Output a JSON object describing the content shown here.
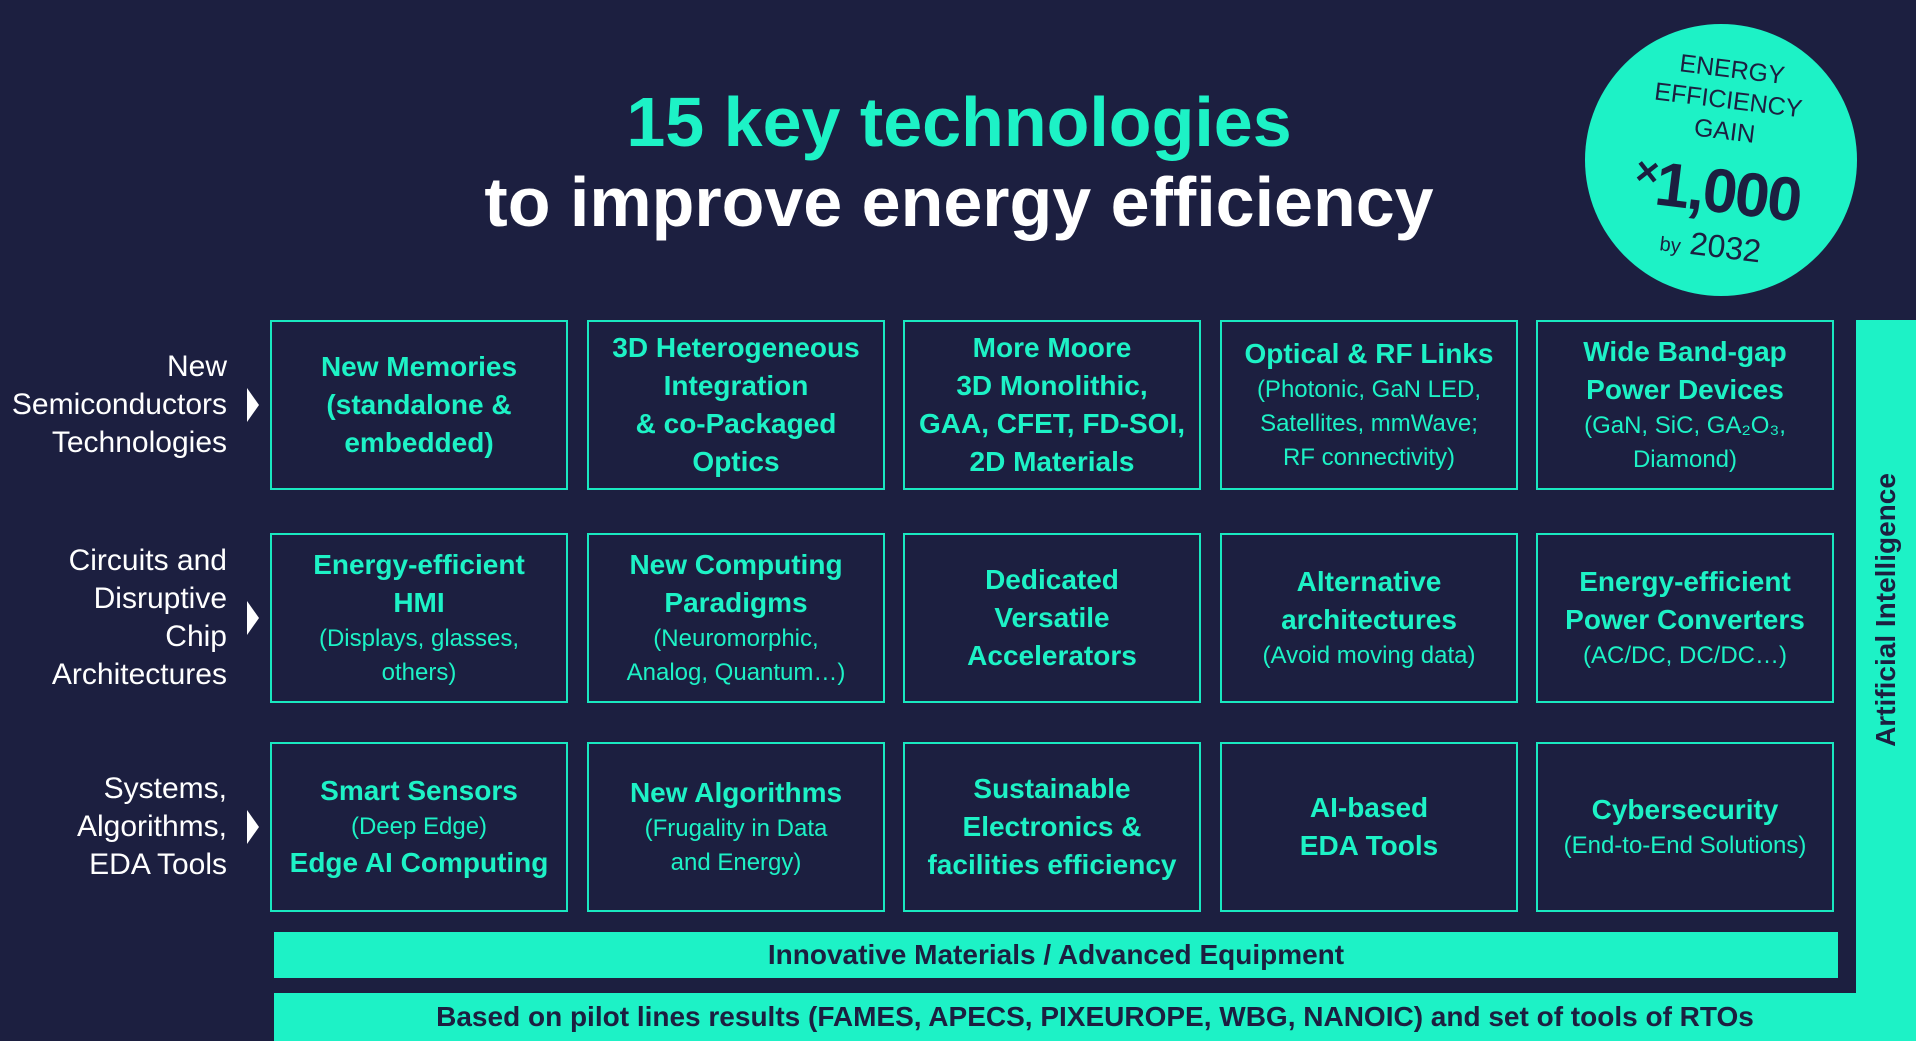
{
  "header": {
    "title_line1": "15 key technologies",
    "title_line2": "to improve energy efficiency"
  },
  "badge": {
    "lines": [
      "ENERGY",
      "EFFICIENCY",
      "GAIN"
    ],
    "multiplier": "×",
    "value": "1,000",
    "prefix": "by",
    "year": "2032"
  },
  "rows": [
    {
      "label": [
        "New",
        "Semiconductors",
        "Technologies"
      ],
      "cells": [
        {
          "lines": [
            {
              "text": "New Memories",
              "style": "bold"
            },
            {
              "text": "(standalone &",
              "style": "bold"
            },
            {
              "text": "embedded)",
              "style": "bold"
            }
          ]
        },
        {
          "lines": [
            {
              "text": "3D Heterogeneous",
              "style": "bold"
            },
            {
              "text": "Integration",
              "style": "bold"
            },
            {
              "text": "& co-Packaged",
              "style": "bold"
            },
            {
              "text": "Optics",
              "style": "bold"
            }
          ]
        },
        {
          "lines": [
            {
              "text": "More Moore",
              "style": "bold"
            },
            {
              "text": "3D Monolithic,",
              "style": "bold"
            },
            {
              "text": "GAA, CFET, FD-SOI,",
              "style": "bold"
            },
            {
              "text": "2D Materials",
              "style": "bold"
            }
          ]
        },
        {
          "lines": [
            {
              "text": "Optical & RF Links",
              "style": "bold"
            },
            {
              "text": "(Photonic, GaN LED,",
              "style": "regular"
            },
            {
              "text": "Satellites, mmWave;",
              "style": "regular"
            },
            {
              "text": "RF connectivity)",
              "style": "regular"
            }
          ]
        },
        {
          "lines": [
            {
              "text": "Wide Band-gap",
              "style": "bold"
            },
            {
              "text": "Power Devices",
              "style": "bold"
            },
            {
              "text": "(GaN, SiC, GA₂O₃,",
              "style": "regular"
            },
            {
              "text": "Diamond)",
              "style": "regular"
            }
          ]
        }
      ]
    },
    {
      "label": [
        "Circuits and",
        "Disruptive",
        "Chip",
        "Architectures"
      ],
      "cells": [
        {
          "lines": [
            {
              "text": "Energy-efficient",
              "style": "bold"
            },
            {
              "text": "HMI",
              "style": "bold"
            },
            {
              "text": "(Displays, glasses,",
              "style": "regular"
            },
            {
              "text": "others)",
              "style": "regular"
            }
          ]
        },
        {
          "lines": [
            {
              "text": "New Computing",
              "style": "bold"
            },
            {
              "text": "Paradigms",
              "style": "bold"
            },
            {
              "text": "(Neuromorphic,",
              "style": "regular"
            },
            {
              "text": "Analog, Quantum…)",
              "style": "regular"
            }
          ]
        },
        {
          "lines": [
            {
              "text": "Dedicated",
              "style": "bold"
            },
            {
              "text": "Versatile",
              "style": "bold"
            },
            {
              "text": "Accelerators",
              "style": "bold"
            }
          ]
        },
        {
          "lines": [
            {
              "text": "Alternative",
              "style": "bold"
            },
            {
              "text": "architectures",
              "style": "bold"
            },
            {
              "text": "(Avoid moving data)",
              "style": "regular"
            }
          ]
        },
        {
          "lines": [
            {
              "text": "Energy-efficient",
              "style": "bold"
            },
            {
              "text": "Power Converters",
              "style": "bold"
            },
            {
              "text": "(AC/DC, DC/DC…)",
              "style": "regular"
            }
          ]
        }
      ]
    },
    {
      "label": [
        "Systems,",
        "Algorithms,",
        "EDA Tools"
      ],
      "cells": [
        {
          "lines": [
            {
              "text": "Smart Sensors",
              "style": "bold"
            },
            {
              "text": "(Deep Edge)",
              "style": "regular"
            },
            {
              "text": "Edge AI Computing",
              "style": "bold"
            }
          ]
        },
        {
          "lines": [
            {
              "text": "New Algorithms",
              "style": "bold"
            },
            {
              "text": "(Frugality in Data",
              "style": "regular"
            },
            {
              "text": "and Energy)",
              "style": "regular"
            }
          ]
        },
        {
          "lines": [
            {
              "text": "Sustainable",
              "style": "bold"
            },
            {
              "text": "Electronics &",
              "style": "bold"
            },
            {
              "text": "facilities efficiency",
              "style": "bold"
            }
          ]
        },
        {
          "lines": [
            {
              "text": "AI-based",
              "style": "bold"
            },
            {
              "text": "EDA Tools",
              "style": "bold"
            }
          ]
        },
        {
          "lines": [
            {
              "text": "Cybersecurity",
              "style": "bold"
            },
            {
              "text": "(End-to-End Solutions)",
              "style": "regular"
            }
          ]
        }
      ]
    }
  ],
  "side_bar": "Artificial Intelligence",
  "materials_bar": "Innovative Materials / Advanced Equipment",
  "footer_bar": "Based on pilot lines results (FAMES, APECS, PIXEUROPE, WBG, NANOIC)  and set of tools of RTOs"
}
